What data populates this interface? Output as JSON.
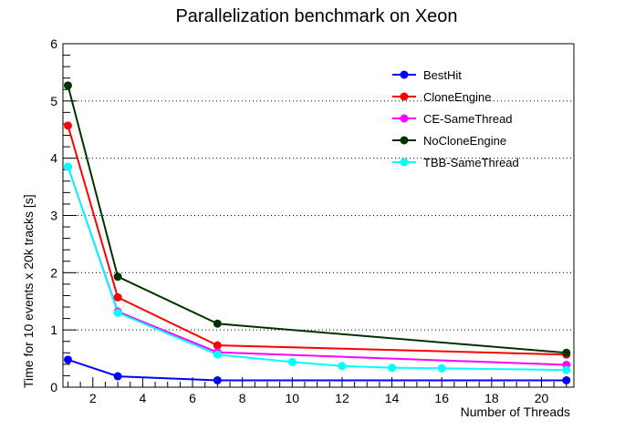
{
  "chart_data": {
    "type": "line",
    "title": "Parallelization benchmark on Xeon",
    "xlabel": "Number of Threads",
    "ylabel": "Time for 10 events x 20k tracks [s]",
    "xlim": [
      0.8,
      21.3
    ],
    "ylim": [
      0,
      6
    ],
    "x_ticks": [
      2,
      4,
      6,
      8,
      10,
      12,
      14,
      16,
      18,
      20
    ],
    "y_ticks": [
      0,
      1,
      2,
      3,
      4,
      5,
      6
    ],
    "grid": "horizontal dotted",
    "legend_position": "top-right",
    "series": [
      {
        "name": "BestHit",
        "color": "#0000ff",
        "x": [
          1,
          3,
          7,
          21
        ],
        "y": [
          0.48,
          0.19,
          0.12,
          0.12
        ]
      },
      {
        "name": "CloneEngine",
        "color": "#ff0000",
        "x": [
          1,
          3,
          7,
          21
        ],
        "y": [
          4.57,
          1.57,
          0.73,
          0.57
        ]
      },
      {
        "name": "CE-SameThread",
        "color": "#ff00ff",
        "x": [
          1,
          3,
          7,
          21
        ],
        "y": [
          3.85,
          1.32,
          0.61,
          0.39
        ]
      },
      {
        "name": "NoCloneEngine",
        "color": "#003300",
        "x": [
          1,
          3,
          7,
          21
        ],
        "y": [
          5.27,
          1.93,
          1.11,
          0.6
        ]
      },
      {
        "name": "TBB-SameThread",
        "color": "#00ffff",
        "x": [
          1,
          3,
          7,
          10,
          12,
          14,
          16,
          21
        ],
        "y": [
          3.85,
          1.3,
          0.57,
          0.44,
          0.37,
          0.34,
          0.33,
          0.3
        ]
      }
    ]
  }
}
